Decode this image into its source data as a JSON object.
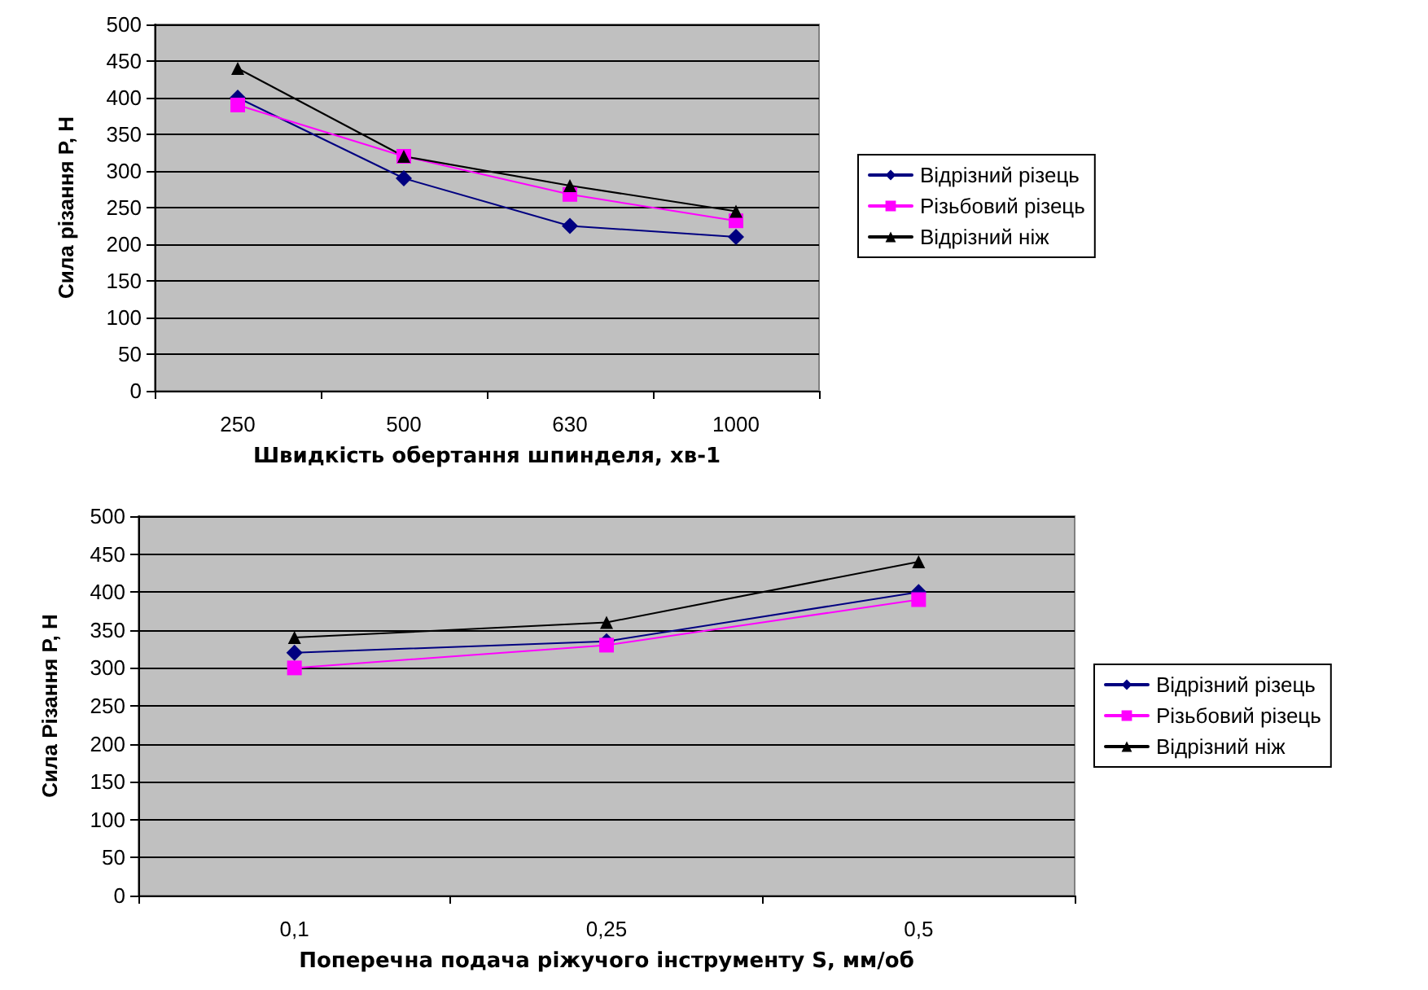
{
  "chart_data": [
    {
      "type": "line",
      "xlabel": "Швидкість обертання шпинделя, хв-1",
      "ylabel": "Сила різання P, Н",
      "categories": [
        "250",
        "500",
        "630",
        "1000"
      ],
      "series": [
        {
          "name": "Відрізний різець",
          "color": "#000080",
          "marker": "diamond",
          "values": [
            400,
            290,
            225,
            210
          ]
        },
        {
          "name": "Різьбовий різець",
          "color": "#ff00ff",
          "marker": "square",
          "values": [
            390,
            320,
            268,
            232
          ]
        },
        {
          "name": "Відрізний ніж",
          "color": "#000000",
          "marker": "triangle",
          "values": [
            440,
            320,
            280,
            245
          ]
        }
      ],
      "ylim": [
        0,
        500
      ],
      "yticks": [
        0,
        50,
        100,
        150,
        200,
        250,
        300,
        350,
        400,
        450,
        500
      ],
      "grid": "y",
      "legend": "right"
    },
    {
      "type": "line",
      "xlabel": "Поперечна подача ріжучого інструменту S, мм/об",
      "ylabel": "Сила Різання P, Н",
      "categories": [
        "0,1",
        "0,25",
        "0,5"
      ],
      "series": [
        {
          "name": "Відрізний різець",
          "color": "#000080",
          "marker": "diamond",
          "values": [
            320,
            335,
            400
          ]
        },
        {
          "name": "Різьбовий різець",
          "color": "#ff00ff",
          "marker": "square",
          "values": [
            300,
            330,
            390
          ]
        },
        {
          "name": "Відрізний ніж",
          "color": "#000000",
          "marker": "triangle",
          "values": [
            340,
            360,
            440
          ]
        }
      ],
      "ylim": [
        0,
        500
      ],
      "yticks": [
        0,
        50,
        100,
        150,
        200,
        250,
        300,
        350,
        400,
        450,
        500
      ],
      "grid": "y",
      "legend": "right"
    }
  ]
}
